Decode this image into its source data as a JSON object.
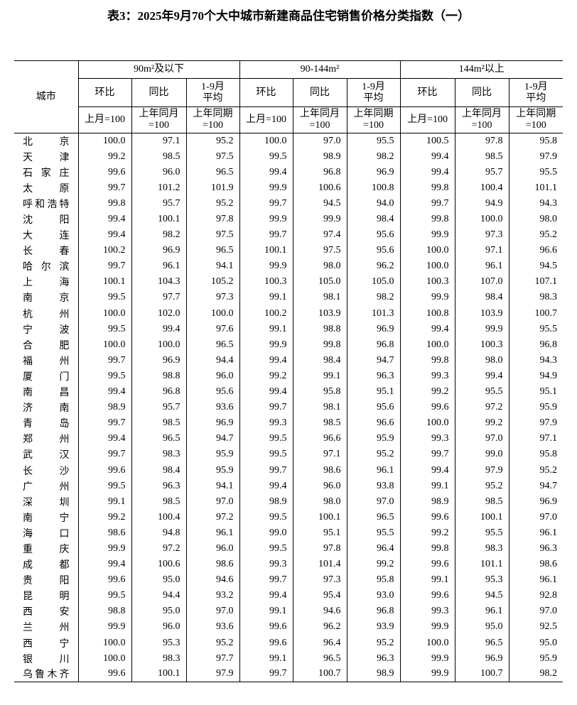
{
  "title": "表3：2025年9月70个大中城市新建商品住宅销售价格分类指数（一）",
  "table": {
    "header": {
      "city": "城市",
      "groups": [
        "90m²及以下",
        "90-144m²",
        "144m²以上"
      ],
      "columns": [
        "环比",
        "同比",
        "1-9月\n平均",
        "环比",
        "同比",
        "1-9月\n平均",
        "环比",
        "同比",
        "1-9月\n平均"
      ],
      "bases": [
        "上月=100",
        "上年同月\n=100",
        "上年同期\n=100",
        "上月=100",
        "上年同月\n=100",
        "上年同期\n=100",
        "上月=100",
        "上年同月\n=100",
        "上年同期\n=100"
      ]
    },
    "rows": [
      [
        "北京",
        "100.0",
        "97.1",
        "95.2",
        "100.0",
        "97.0",
        "95.5",
        "100.5",
        "97.8",
        "95.8"
      ],
      [
        "天津",
        "99.2",
        "98.5",
        "97.5",
        "99.5",
        "98.9",
        "98.2",
        "99.4",
        "98.5",
        "97.9"
      ],
      [
        "石家庄",
        "99.6",
        "96.0",
        "96.5",
        "99.4",
        "96.8",
        "96.9",
        "99.4",
        "95.7",
        "95.5"
      ],
      [
        "太原",
        "99.7",
        "101.2",
        "101.9",
        "99.9",
        "100.6",
        "100.8",
        "99.8",
        "100.4",
        "101.1"
      ],
      [
        "呼和浩特",
        "99.8",
        "95.7",
        "95.2",
        "99.7",
        "94.5",
        "94.0",
        "99.7",
        "94.9",
        "94.3"
      ],
      [
        "沈阳",
        "99.4",
        "100.1",
        "97.8",
        "99.9",
        "99.9",
        "98.4",
        "99.8",
        "100.0",
        "98.0"
      ],
      [
        "大连",
        "99.4",
        "98.2",
        "97.5",
        "99.7",
        "97.4",
        "95.6",
        "99.9",
        "97.3",
        "95.2"
      ],
      [
        "长春",
        "100.2",
        "96.9",
        "96.5",
        "100.1",
        "97.5",
        "95.6",
        "100.0",
        "97.1",
        "96.6"
      ],
      [
        "哈尔滨",
        "99.7",
        "96.1",
        "94.1",
        "99.9",
        "98.0",
        "96.2",
        "100.0",
        "96.1",
        "94.5"
      ],
      [
        "上海",
        "100.1",
        "104.3",
        "105.2",
        "100.3",
        "105.0",
        "105.0",
        "100.3",
        "107.0",
        "107.1"
      ],
      [
        "南京",
        "99.5",
        "97.7",
        "97.3",
        "99.1",
        "98.1",
        "98.2",
        "99.9",
        "98.4",
        "98.3"
      ],
      [
        "杭州",
        "100.0",
        "102.0",
        "100.0",
        "100.2",
        "103.9",
        "101.3",
        "100.8",
        "103.9",
        "100.7"
      ],
      [
        "宁波",
        "99.5",
        "99.4",
        "97.6",
        "99.1",
        "98.8",
        "96.9",
        "99.4",
        "99.9",
        "95.5"
      ],
      [
        "合肥",
        "100.0",
        "100.0",
        "96.5",
        "99.9",
        "99.8",
        "96.8",
        "100.0",
        "100.3",
        "96.8"
      ],
      [
        "福州",
        "99.7",
        "96.9",
        "94.4",
        "99.4",
        "98.4",
        "94.7",
        "99.8",
        "98.0",
        "94.3"
      ],
      [
        "厦门",
        "99.5",
        "98.8",
        "96.0",
        "99.2",
        "99.1",
        "96.3",
        "99.3",
        "99.4",
        "94.9"
      ],
      [
        "南昌",
        "99.4",
        "96.8",
        "95.6",
        "99.4",
        "95.8",
        "95.1",
        "99.2",
        "95.5",
        "95.1"
      ],
      [
        "济南",
        "98.9",
        "95.7",
        "93.6",
        "99.7",
        "98.1",
        "95.6",
        "99.6",
        "97.2",
        "95.9"
      ],
      [
        "青岛",
        "99.7",
        "98.5",
        "96.9",
        "99.3",
        "98.5",
        "96.6",
        "100.0",
        "99.2",
        "97.9"
      ],
      [
        "郑州",
        "99.4",
        "96.5",
        "94.7",
        "99.5",
        "96.6",
        "95.9",
        "99.3",
        "97.0",
        "97.1"
      ],
      [
        "武汉",
        "99.7",
        "98.3",
        "95.9",
        "99.5",
        "97.1",
        "95.2",
        "99.7",
        "99.0",
        "95.8"
      ],
      [
        "长沙",
        "99.6",
        "98.4",
        "95.9",
        "99.7",
        "98.6",
        "96.1",
        "99.4",
        "97.9",
        "95.2"
      ],
      [
        "广州",
        "99.5",
        "96.3",
        "94.1",
        "99.4",
        "96.0",
        "93.8",
        "99.1",
        "95.2",
        "94.7"
      ],
      [
        "深圳",
        "99.1",
        "98.5",
        "97.0",
        "98.9",
        "98.0",
        "97.0",
        "98.9",
        "98.5",
        "96.9"
      ],
      [
        "南宁",
        "99.2",
        "100.4",
        "97.2",
        "99.5",
        "100.1",
        "96.5",
        "99.6",
        "100.1",
        "97.0"
      ],
      [
        "海口",
        "98.6",
        "94.8",
        "96.1",
        "99.0",
        "95.1",
        "95.5",
        "99.2",
        "95.5",
        "96.1"
      ],
      [
        "重庆",
        "99.9",
        "97.2",
        "96.0",
        "99.5",
        "97.8",
        "96.4",
        "99.8",
        "98.3",
        "96.3"
      ],
      [
        "成都",
        "99.4",
        "100.6",
        "98.6",
        "99.3",
        "101.4",
        "99.2",
        "99.6",
        "101.1",
        "98.6"
      ],
      [
        "贵阳",
        "99.6",
        "95.0",
        "94.6",
        "99.7",
        "97.3",
        "95.8",
        "99.1",
        "95.3",
        "96.1"
      ],
      [
        "昆明",
        "99.5",
        "94.4",
        "93.2",
        "99.4",
        "95.4",
        "93.0",
        "99.6",
        "94.5",
        "92.8"
      ],
      [
        "西安",
        "98.8",
        "95.0",
        "97.0",
        "99.1",
        "94.6",
        "96.8",
        "99.3",
        "96.1",
        "97.0"
      ],
      [
        "兰州",
        "99.9",
        "96.0",
        "93.6",
        "99.6",
        "96.2",
        "93.9",
        "99.9",
        "95.0",
        "92.5"
      ],
      [
        "西宁",
        "100.0",
        "95.3",
        "95.2",
        "99.6",
        "96.4",
        "95.2",
        "100.0",
        "96.5",
        "95.0"
      ],
      [
        "银川",
        "100.0",
        "98.3",
        "97.7",
        "99.1",
        "96.5",
        "96.3",
        "99.9",
        "96.9",
        "95.9"
      ],
      [
        "乌鲁木齐",
        "99.6",
        "100.1",
        "97.9",
        "99.7",
        "100.7",
        "98.9",
        "99.9",
        "100.7",
        "98.2"
      ]
    ]
  }
}
